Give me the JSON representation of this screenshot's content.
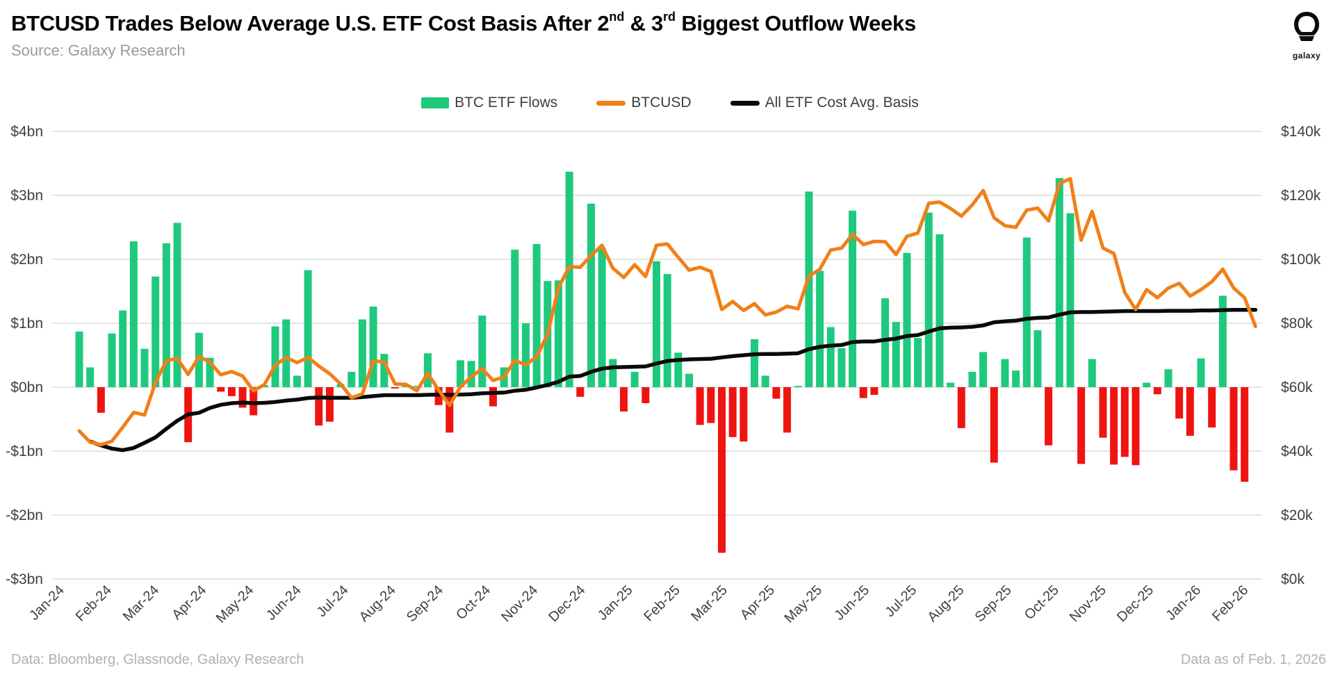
{
  "header": {
    "title": {
      "pre": "BTCUSD Trades Below Average U.S. ETF Cost Basis After 2",
      "sup1": "nd",
      "mid": " & 3",
      "sup2": "rd",
      "post": " Biggest Outflow Weeks"
    },
    "source": "Source: Galaxy Research",
    "logo_word": "galaxy"
  },
  "legend": {
    "items": [
      {
        "label": "BTC ETF Flows",
        "color": "#1ec97e",
        "swatch": "bar"
      },
      {
        "label": "BTCUSD",
        "color": "#f08019",
        "swatch": "line"
      },
      {
        "label": "All ETF Cost Avg. Basis",
        "color": "#0a0a0a",
        "swatch": "line"
      }
    ]
  },
  "footer": {
    "left": "Data: Bloomberg, Glassnode, Galaxy Research",
    "right": "Data as of Feb. 1, 2026"
  },
  "chart_data": {
    "type": "bar",
    "subtype": "combo-bar-line-dual-axis",
    "sampling": "weekly",
    "x_axis": {
      "month_labels": [
        "Jan-24",
        "Feb-24",
        "Mar-24",
        "Apr-24",
        "May-24",
        "Jun-24",
        "Jul-24",
        "Aug-24",
        "Sep-24",
        "Oct-24",
        "Nov-24",
        "Dec-24",
        "Jan-25",
        "Feb-25",
        "Mar-25",
        "Apr-25",
        "May-25",
        "Jun-25",
        "Jul-25",
        "Aug-25",
        "Sep-25",
        "Oct-25",
        "Nov-25",
        "Dec-25",
        "Jan-26",
        "Feb-26"
      ]
    },
    "left_axis": {
      "title": "BTC ETF weekly net flows",
      "unit": "$bn",
      "min": -3,
      "max": 4,
      "ticks": [
        "$4bn",
        "$3bn",
        "$2bn",
        "$1bn",
        "$0bn",
        "-$1bn",
        "-$2bn",
        "-$3bn"
      ],
      "tick_values": [
        4,
        3,
        2,
        1,
        0,
        -1,
        -2,
        -3
      ]
    },
    "right_axis": {
      "title": "BTCUSD price",
      "unit": "$k",
      "min": 0,
      "max": 140,
      "ticks": [
        "$140k",
        "$120k",
        "$100k",
        "$80k",
        "$60k",
        "$40k",
        "$20k",
        "$0k"
      ],
      "tick_values": [
        140,
        120,
        100,
        80,
        60,
        40,
        20,
        0
      ]
    },
    "grid": true,
    "legend_position": "top-center",
    "series": [
      {
        "name": "BTC ETF Flows",
        "type": "bar",
        "axis": "left",
        "unit": "$bn",
        "color_positive": "#1ec97e",
        "color_negative": "#ee1511",
        "values": [
          0.87,
          0.31,
          -0.4,
          0.84,
          1.2,
          2.28,
          0.6,
          1.73,
          2.25,
          2.57,
          -0.86,
          0.85,
          0.46,
          -0.07,
          -0.14,
          -0.32,
          -0.44,
          0.03,
          0.95,
          1.06,
          0.18,
          1.83,
          -0.6,
          -0.54,
          0.05,
          0.24,
          1.06,
          1.26,
          0.52,
          -0.02,
          0.02,
          0.02,
          0.53,
          -0.28,
          -0.71,
          0.42,
          0.41,
          1.12,
          -0.3,
          0.31,
          2.15,
          1.0,
          2.24,
          1.66,
          1.67,
          3.37,
          -0.15,
          2.87,
          2.18,
          0.44,
          -0.38,
          0.24,
          -0.25,
          1.97,
          1.77,
          0.54,
          0.21,
          -0.59,
          -0.56,
          -2.59,
          -0.78,
          -0.85,
          0.75,
          0.18,
          -0.18,
          -0.71,
          0.02,
          3.06,
          1.82,
          0.94,
          0.61,
          2.76,
          -0.17,
          -0.12,
          1.39,
          1.02,
          2.1,
          0.77,
          2.73,
          2.39,
          0.07,
          -0.64,
          0.24,
          0.55,
          -1.18,
          0.44,
          0.26,
          2.34,
          0.89,
          -0.91,
          3.27,
          2.72,
          -1.2,
          0.44,
          -0.79,
          -1.21,
          -1.09,
          -1.22,
          0.07,
          -0.11,
          0.28,
          -0.49,
          -0.76,
          0.45,
          -0.63,
          1.43,
          -1.3,
          -1.48
        ]
      },
      {
        "name": "BTCUSD",
        "type": "line",
        "axis": "right",
        "unit": "$k",
        "color": "#f08019",
        "values": [
          46.3,
          42.8,
          42.0,
          43.1,
          47.5,
          52.1,
          51.3,
          61.5,
          68.3,
          69.0,
          64.0,
          69.6,
          67.8,
          63.9,
          64.9,
          63.5,
          58.9,
          60.8,
          66.9,
          69.3,
          67.7,
          69.3,
          66.6,
          64.2,
          61.0,
          56.7,
          57.9,
          68.2,
          67.9,
          61.0,
          60.9,
          58.9,
          64.3,
          59.1,
          54.3,
          60.1,
          63.2,
          65.8,
          62.1,
          63.2,
          68.4,
          67.0,
          69.5,
          76.5,
          91.1,
          97.7,
          97.5,
          101.2,
          104.4,
          97.2,
          94.3,
          98.3,
          94.6,
          104.4,
          104.8,
          100.6,
          96.6,
          97.5,
          96.2,
          84.3,
          86.8,
          84.0,
          86.1,
          82.6,
          83.5,
          85.3,
          84.5,
          94.7,
          96.9,
          102.9,
          103.5,
          107.8,
          104.6,
          105.6,
          105.5,
          101.5,
          107.2,
          108.2,
          117.5,
          117.9,
          115.9,
          113.5,
          117.0,
          121.5,
          113.0,
          110.5,
          110.0,
          115.4,
          116.0,
          112.0,
          123.7,
          125.2,
          106.0,
          115.0,
          103.5,
          101.8,
          89.6,
          84.3,
          90.5,
          88.0,
          91.0,
          92.5,
          88.5,
          90.5,
          93.0,
          96.9,
          91.0,
          88.0,
          79.0
        ]
      },
      {
        "name": "All ETF Cost Avg. Basis",
        "type": "line",
        "axis": "right",
        "unit": "$k",
        "color": "#0a0a0a",
        "values": [
          null,
          43.0,
          41.8,
          40.8,
          40.3,
          41.0,
          42.6,
          44.3,
          47.0,
          49.5,
          51.5,
          52.0,
          53.5,
          54.5,
          55.0,
          55.2,
          55.0,
          55.1,
          55.4,
          55.8,
          56.1,
          56.6,
          56.8,
          56.7,
          56.7,
          56.7,
          56.9,
          57.2,
          57.5,
          57.5,
          57.5,
          57.5,
          57.6,
          57.7,
          57.6,
          57.7,
          57.8,
          58.1,
          58.2,
          58.3,
          58.9,
          59.2,
          59.9,
          60.7,
          61.7,
          63.3,
          63.5,
          64.8,
          65.8,
          66.2,
          66.3,
          66.4,
          66.5,
          67.4,
          68.2,
          68.5,
          68.7,
          68.8,
          68.9,
          69.3,
          69.7,
          70.0,
          70.3,
          70.4,
          70.4,
          70.5,
          70.6,
          71.9,
          72.6,
          73.0,
          73.2,
          74.1,
          74.3,
          74.3,
          74.8,
          75.2,
          76.0,
          76.3,
          77.4,
          78.4,
          78.6,
          78.7,
          78.9,
          79.3,
          80.3,
          80.6,
          80.8,
          81.4,
          81.7,
          81.8,
          82.7,
          83.4,
          83.5,
          83.5,
          83.6,
          83.7,
          83.8,
          83.8,
          83.8,
          83.8,
          83.9,
          83.9,
          83.9,
          84.0,
          84.0,
          84.1,
          84.2,
          84.2,
          84.2
        ]
      }
    ]
  }
}
